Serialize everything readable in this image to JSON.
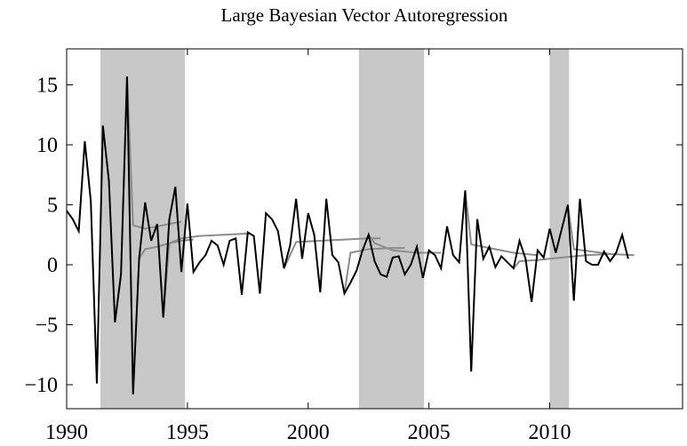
{
  "chart_data": {
    "type": "line",
    "title": "Large Bayesian Vector Autoregression",
    "xlim": [
      1990,
      2015.5
    ],
    "ylim": [
      -12,
      18
    ],
    "xticks": [
      1990,
      1995,
      2000,
      2005,
      2010
    ],
    "yticks": [
      {
        "value": -10,
        "label": "−10"
      },
      {
        "value": -5,
        "label": "−5"
      },
      0,
      5,
      10,
      15
    ],
    "shade_color": "#c8c8c8",
    "shaded": [
      [
        1991.4,
        1994.9
      ],
      [
        2002.1,
        2004.8
      ],
      [
        2010,
        2010.8
      ]
    ],
    "series": [
      {
        "color": "#000000",
        "x": [
          1990,
          1990.25,
          1990.5,
          1990.75,
          1991,
          1991.25,
          1991.5,
          1991.75,
          1992,
          1992.25,
          1992.5,
          1992.75,
          1993,
          1993.25,
          1993.5,
          1993.75,
          1994,
          1994.25,
          1994.5,
          1994.75,
          1995,
          1995.25,
          1995.5,
          1995.75,
          1996,
          1996.25,
          1996.5,
          1996.75,
          1997,
          1997.25,
          1997.5,
          1997.75,
          1998,
          1998.25,
          1998.5,
          1998.75,
          1999,
          1999.25,
          1999.5,
          1999.75,
          2000,
          2000.25,
          2000.5,
          2000.75,
          2001,
          2001.25,
          2001.5,
          2001.75,
          2002,
          2002.25,
          2002.5,
          2002.75,
          2003,
          2003.25,
          2003.5,
          2003.75,
          2004,
          2004.25,
          2004.5,
          2004.75,
          2005,
          2005.25,
          2005.5,
          2005.75,
          2006,
          2006.25,
          2006.5,
          2006.75,
          2007,
          2007.25,
          2007.5,
          2007.75,
          2008,
          2008.25,
          2008.5,
          2008.75,
          2009,
          2009.25,
          2009.5,
          2009.75,
          2010,
          2010.25,
          2010.5,
          2010.75,
          2011,
          2011.25,
          2011.5,
          2011.75,
          2012,
          2012.25,
          2012.5,
          2012.75,
          2013,
          2013.25
        ],
        "values": [
          4.5,
          3.8,
          2.8,
          10.3,
          5.3,
          -9.9,
          11.6,
          7,
          -4.8,
          -0.8,
          15.7,
          -10.8,
          0.5,
          5.2,
          2,
          3.4,
          -4.4,
          3.8,
          6.5,
          -0.6,
          5.1,
          -0.6,
          0.2,
          0.8,
          2,
          1.6,
          0,
          2,
          2.2,
          -2.5,
          2.7,
          2.4,
          -2.4,
          4.3,
          3.8,
          2.8,
          -0.3,
          1.6,
          5.5,
          0.5,
          4.3,
          2.5,
          -2.3,
          5.5,
          0.8,
          0.2,
          -2.4,
          -1.5,
          -0.5,
          1.2,
          2.5,
          0.3,
          -0.8,
          -1,
          0.6,
          0.7,
          -0.8,
          0,
          1.5,
          -1.1,
          1.2,
          0.8,
          -0.3,
          3.2,
          0.8,
          0.2,
          6.2,
          -8.9,
          3.8,
          0.5,
          1.5,
          -0.2,
          0.7,
          0.2,
          -0.3,
          2,
          0.5,
          -3.1,
          1.2,
          0.6,
          3,
          1,
          3,
          5,
          -3,
          5.5,
          0.3,
          0,
          0,
          1.1,
          0.3,
          1,
          2.5,
          0.5
        ]
      }
    ],
    "forecast_color": "#8c8c8c",
    "forecasts": [
      {
        "x": [
          1992.5,
          1992.75,
          1993.25,
          1993.75,
          1994.25,
          1994.75
        ],
        "values": [
          15.7,
          3.3,
          3.0,
          3.2,
          3.4,
          3.6
        ]
      },
      {
        "x": [
          1993,
          1993.25,
          1993.75,
          1994.25,
          1994.75,
          1995.25
        ],
        "values": [
          0.5,
          1.3,
          1.5,
          1.8,
          2.0,
          2.1
        ]
      },
      {
        "x": [
          1994,
          1994.25,
          1994.75,
          1995.5,
          1996.5,
          1997.5
        ],
        "values": [
          -4.4,
          1.8,
          2.2,
          2.4,
          2.5,
          2.6
        ]
      },
      {
        "x": [
          1999,
          1999.5,
          2000.5,
          2001.5,
          2002.5,
          2003
        ],
        "values": [
          -0.3,
          1.9,
          2.0,
          2.1,
          2.2,
          2.2
        ]
      },
      {
        "x": [
          2001.5,
          2001.75,
          2002.5,
          2003.5,
          2004
        ],
        "values": [
          -2.4,
          1.0,
          1.3,
          1.4,
          1.4
        ]
      },
      {
        "x": [
          2002.5,
          2002.75,
          2003.5,
          2004.5,
          2005.5
        ],
        "values": [
          2.5,
          1.8,
          1.2,
          1.0,
          1.0
        ]
      },
      {
        "x": [
          2006.5,
          2006.75,
          2007.5,
          2008.5,
          2009.5
        ],
        "values": [
          6.2,
          1.7,
          1.4,
          1.0,
          0.8
        ]
      },
      {
        "x": [
          2008.5,
          2008.75,
          2009.5,
          2010.5,
          2011.5,
          2012.5
        ],
        "values": [
          -0.3,
          0.3,
          0.4,
          0.6,
          0.8,
          0.9
        ]
      },
      {
        "x": [
          2010.75,
          2011,
          2011.75,
          2012.5,
          2013.5
        ],
        "values": [
          5,
          1.3,
          1.1,
          0.9,
          0.8
        ]
      }
    ]
  }
}
